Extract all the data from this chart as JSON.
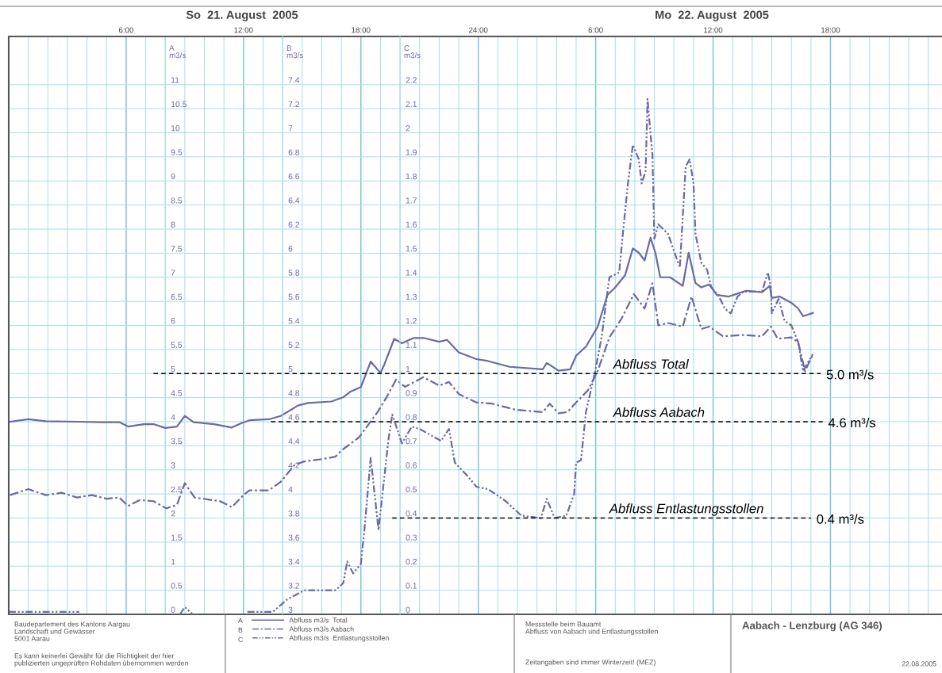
{
  "chart_data": {
    "type": "line",
    "title": "Aabach - Lenzburg (AG 346)",
    "ylabel": "A\nm3/s",
    "y2label": "B\nm3/s",
    "y3label": "C\nm3/s",
    "xlim": [
      "2005-08-21T00:00",
      "2005-08-22T23:42"
    ],
    "xticks": [
      {
        "value": "2005-08-21T06:00",
        "label": "6:00"
      },
      {
        "value": "2005-08-21T12:00",
        "label": "12:00"
      },
      {
        "value": "2005-08-21T18:00",
        "label": "18:00"
      },
      {
        "value": "2005-08-22T00:00",
        "label": "24:00"
      },
      {
        "value": "2005-08-22T06:00",
        "label": "6:00"
      },
      {
        "value": "2005-08-22T12:00",
        "label": "12:00"
      },
      {
        "value": "2005-08-22T18:00",
        "label": "18:00"
      }
    ],
    "ylim": [
      0,
      12
    ],
    "yticks": [
      0,
      0.5,
      1,
      1.5,
      2,
      2.5,
      3,
      3.5,
      4,
      4.5,
      5,
      5.5,
      6,
      6.5,
      7,
      7.5,
      8,
      8.5,
      9,
      9.5,
      10,
      10.5,
      11
    ],
    "y2lim": [
      3,
      7.8
    ],
    "y2ticks": [
      3,
      3.2,
      3.4,
      3.6,
      3.8,
      4,
      4.2,
      4.4,
      4.6,
      4.8,
      5,
      5.2,
      5.4,
      5.6,
      5.8,
      6,
      6.2,
      6.4,
      6.6,
      6.8,
      7,
      7.2,
      7.4
    ],
    "y3lim": [
      0,
      2.4
    ],
    "y3ticks": [
      0,
      0.1,
      0.2,
      0.3,
      0.4,
      0.5,
      0.6,
      0.7,
      0.8,
      0.9,
      1,
      1.1,
      1.2,
      1.3,
      1.4,
      1.5,
      1.6,
      1.7,
      1.8,
      1.9,
      2,
      2.1,
      2.2
    ],
    "grid": true,
    "legend": "bottom",
    "series": [
      {
        "name": "Abfluss m3/s  Total",
        "color": "#6a6aa6",
        "line_style": "solid",
        "axis": "y",
        "x": [
          "2005-08-21T00:04",
          "2005-08-21T01:00",
          "2005-08-21T01:54",
          "2005-08-21T03:30",
          "2005-08-21T04:42",
          "2005-08-21T05:39",
          "2005-08-21T06:06",
          "2005-08-21T06:54",
          "2005-08-21T07:24",
          "2005-08-21T08:00",
          "2005-08-21T08:36",
          "2005-08-21T09:00",
          "2005-08-21T09:27",
          "2005-08-21T10:30",
          "2005-08-21T11:24",
          "2005-08-21T11:54",
          "2005-08-21T12:18",
          "2005-08-21T13:18",
          "2005-08-21T13:54",
          "2005-08-21T14:48",
          "2005-08-21T15:18",
          "2005-08-21T16:30",
          "2005-08-21T17:06",
          "2005-08-21T17:27",
          "2005-08-21T18:00",
          "2005-08-21T18:30",
          "2005-08-21T19:00",
          "2005-08-21T19:12",
          "2005-08-21T19:42",
          "2005-08-21T20:06",
          "2005-08-21T20:42",
          "2005-08-21T21:12",
          "2005-08-21T22:00",
          "2005-08-21T22:24",
          "2005-08-21T23:00",
          "2005-08-21T23:54",
          "2005-08-22T00:30",
          "2005-08-22T01:36",
          "2005-08-22T03:18",
          "2005-08-22T03:30",
          "2005-08-22T04:06",
          "2005-08-22T04:42",
          "2005-08-22T05:00",
          "2005-08-22T05:30",
          "2005-08-22T06:06",
          "2005-08-22T06:36",
          "2005-08-22T07:00",
          "2005-08-22T07:30",
          "2005-08-22T07:54",
          "2005-08-22T08:12",
          "2005-08-22T08:30",
          "2005-08-22T08:48",
          "2005-08-22T09:03",
          "2005-08-22T09:18",
          "2005-08-22T09:48",
          "2005-08-22T10:27",
          "2005-08-22T10:45",
          "2005-08-22T11:06",
          "2005-08-22T11:24",
          "2005-08-22T11:48",
          "2005-08-22T12:12",
          "2005-08-22T12:48",
          "2005-08-22T13:15",
          "2005-08-22T13:42",
          "2005-08-22T14:30",
          "2005-08-22T14:54",
          "2005-08-22T15:00",
          "2005-08-22T15:24",
          "2005-08-22T16:00",
          "2005-08-22T16:21",
          "2005-08-22T16:36",
          "2005-08-22T17:06"
        ],
        "values": [
          4.0,
          4.05,
          4.01,
          4.0,
          3.99,
          3.99,
          3.9,
          3.95,
          3.95,
          3.87,
          3.9,
          4.12,
          3.99,
          3.95,
          3.88,
          3.97,
          4.03,
          4.05,
          4.12,
          4.34,
          4.39,
          4.42,
          4.51,
          4.62,
          4.72,
          5.25,
          5.01,
          5.19,
          5.72,
          5.63,
          5.74,
          5.74,
          5.66,
          5.7,
          5.44,
          5.3,
          5.26,
          5.14,
          5.09,
          5.22,
          5.06,
          5.09,
          5.37,
          5.56,
          5.97,
          6.63,
          6.79,
          7.04,
          7.6,
          7.51,
          7.35,
          7.82,
          7.51,
          7.0,
          7.0,
          6.82,
          7.51,
          6.88,
          6.79,
          6.85,
          6.63,
          6.6,
          6.66,
          6.72,
          6.69,
          6.82,
          6.57,
          6.6,
          6.47,
          6.35,
          6.19,
          6.26
        ]
      },
      {
        "name": "Abfluss m3/s Aabach",
        "color": "#6a6aa6",
        "line_style": "dashdot",
        "axis": "y2",
        "x": [
          "2005-08-21T00:04",
          "2005-08-21T01:00",
          "2005-08-21T01:54",
          "2005-08-21T02:42",
          "2005-08-21T03:30",
          "2005-08-21T04:15",
          "2005-08-21T05:00",
          "2005-08-21T05:39",
          "2005-08-21T06:06",
          "2005-08-21T06:42",
          "2005-08-21T07:24",
          "2005-08-21T08:03",
          "2005-08-21T08:36",
          "2005-08-21T09:00",
          "2005-08-21T09:30",
          "2005-08-21T10:48",
          "2005-08-21T11:24",
          "2005-08-21T12:00",
          "2005-08-21T12:18",
          "2005-08-21T13:18",
          "2005-08-21T13:54",
          "2005-08-21T14:36",
          "2005-08-21T15:06",
          "2005-08-21T16:03",
          "2005-08-21T16:42",
          "2005-08-21T17:00",
          "2005-08-21T17:54",
          "2005-08-21T18:24",
          "2005-08-21T18:51",
          "2005-08-21T19:18",
          "2005-08-21T19:48",
          "2005-08-21T20:15",
          "2005-08-21T21:12",
          "2005-08-21T22:00",
          "2005-08-21T22:30",
          "2005-08-21T23:00",
          "2005-08-21T23:54",
          "2005-08-22T00:42",
          "2005-08-22T01:54",
          "2005-08-22T03:18",
          "2005-08-22T03:39",
          "2005-08-22T04:06",
          "2005-08-22T04:33",
          "2005-08-22T05:00",
          "2005-08-22T05:36",
          "2005-08-22T06:06",
          "2005-08-22T06:42",
          "2005-08-22T07:18",
          "2005-08-22T07:57",
          "2005-08-22T08:30",
          "2005-08-22T08:54",
          "2005-08-22T09:12",
          "2005-08-22T09:42",
          "2005-08-22T10:27",
          "2005-08-22T10:54",
          "2005-08-22T11:24",
          "2005-08-22T11:48",
          "2005-08-22T12:30",
          "2005-08-22T13:33",
          "2005-08-22T14:30",
          "2005-08-22T14:57",
          "2005-08-22T15:18",
          "2005-08-22T16:00",
          "2005-08-22T16:21",
          "2005-08-22T16:42",
          "2005-08-22T17:06"
        ],
        "values": [
          3.99,
          4.04,
          3.99,
          4.01,
          3.97,
          3.99,
          3.96,
          3.97,
          3.9,
          3.95,
          3.94,
          3.88,
          3.91,
          4.09,
          3.97,
          3.94,
          3.89,
          3.99,
          4.03,
          4.03,
          4.1,
          4.24,
          4.27,
          4.29,
          4.31,
          4.36,
          4.47,
          4.58,
          4.68,
          4.8,
          4.95,
          4.89,
          4.97,
          4.9,
          4.93,
          4.83,
          4.76,
          4.75,
          4.7,
          4.68,
          4.75,
          4.67,
          4.68,
          4.76,
          4.86,
          5.02,
          5.3,
          5.45,
          5.66,
          5.54,
          5.75,
          5.4,
          5.42,
          5.39,
          5.64,
          5.37,
          5.39,
          5.31,
          5.32,
          5.31,
          5.39,
          5.29,
          5.3,
          5.26,
          5.02,
          5.16
        ]
      },
      {
        "name": "Abfluss m3/s  Entlastungsstollen",
        "color": "#6a6aa6",
        "line_style": "dashdotdot",
        "axis": "y3",
        "x": [
          "2005-08-21T00:00",
          "2005-08-21T03:36",
          "2005-08-21T06:00",
          "2005-08-21T08:45",
          "2005-08-21T09:00",
          "2005-08-21T09:24",
          "2005-08-21T11:00",
          "2005-08-21T12:12",
          "2005-08-21T13:30",
          "2005-08-21T14:12",
          "2005-08-21T15:06",
          "2005-08-21T16:42",
          "2005-08-21T17:06",
          "2005-08-21T17:18",
          "2005-08-21T17:36",
          "2005-08-21T18:00",
          "2005-08-21T18:12",
          "2005-08-21T18:30",
          "2005-08-21T18:54",
          "2005-08-21T19:24",
          "2005-08-21T19:36",
          "2005-08-21T20:06",
          "2005-08-21T20:36",
          "2005-08-21T21:00",
          "2005-08-21T22:06",
          "2005-08-21T22:30",
          "2005-08-21T22:48",
          "2005-08-21T23:30",
          "2005-08-21T23:54",
          "2005-08-22T00:30",
          "2005-08-22T01:24",
          "2005-08-22T02:12",
          "2005-08-22T03:12",
          "2005-08-22T03:30",
          "2005-08-22T03:54",
          "2005-08-22T04:30",
          "2005-08-22T04:54",
          "2005-08-22T05:00",
          "2005-08-22T05:15",
          "2005-08-22T05:30",
          "2005-08-22T05:57",
          "2005-08-22T06:18",
          "2005-08-22T06:42",
          "2005-08-22T07:12",
          "2005-08-22T07:24",
          "2005-08-22T07:39",
          "2005-08-22T07:54",
          "2005-08-22T08:12",
          "2005-08-22T08:21",
          "2005-08-22T08:33",
          "2005-08-22T08:39",
          "2005-08-22T08:42",
          "2005-08-22T08:54",
          "2005-08-22T09:00",
          "2005-08-22T09:12",
          "2005-08-22T09:42",
          "2005-08-22T10:18",
          "2005-08-22T10:36",
          "2005-08-22T10:48",
          "2005-08-22T11:00",
          "2005-08-22T11:06",
          "2005-08-22T11:24",
          "2005-08-22T11:42",
          "2005-08-22T11:54",
          "2005-08-22T12:18",
          "2005-08-22T12:36",
          "2005-08-22T12:54",
          "2005-08-22T13:15",
          "2005-08-22T13:33",
          "2005-08-22T14:30",
          "2005-08-22T14:48",
          "2005-08-22T14:57",
          "2005-08-22T15:00",
          "2005-08-22T15:21",
          "2005-08-22T15:39",
          "2005-08-22T16:00",
          "2005-08-22T16:21",
          "2005-08-22T16:36",
          "2005-08-22T16:48",
          "2005-08-22T17:06"
        ],
        "values": [
          0.01,
          0.01,
          null,
          0.0,
          0.03,
          0.0,
          null,
          0.01,
          0.01,
          0.06,
          0.1,
          0.1,
          0.13,
          0.22,
          0.17,
          0.21,
          0.37,
          0.65,
          0.35,
          0.72,
          0.83,
          0.71,
          0.78,
          0.77,
          0.72,
          0.77,
          0.63,
          0.57,
          0.53,
          0.52,
          0.47,
          0.41,
          0.4,
          0.48,
          0.4,
          0.41,
          0.5,
          0.63,
          0.64,
          0.84,
          1.0,
          1.15,
          1.4,
          1.42,
          1.59,
          1.79,
          1.95,
          1.89,
          1.79,
          1.84,
          2.14,
          2.09,
          1.91,
          1.56,
          1.62,
          1.58,
          1.44,
          1.86,
          1.89,
          1.79,
          1.58,
          1.46,
          1.43,
          1.36,
          1.32,
          1.27,
          1.25,
          1.32,
          1.34,
          1.34,
          1.42,
          1.36,
          1.25,
          1.31,
          1.22,
          1.2,
          1.13,
          1.01,
          1.04,
          1.08
        ]
      },
      {
        "name": "5.0 m³/s",
        "color": "#000000",
        "line_style": "dashed",
        "axis": "y",
        "x": [
          "2005-08-21T07:24",
          "2005-08-22T17:30"
        ],
        "values": [
          5.0,
          5.0
        ]
      },
      {
        "name": "4.6 m³/s",
        "color": "#000000",
        "line_style": "dashed",
        "axis": "y2",
        "x": [
          "2005-08-21T13:24",
          "2005-08-22T17:36"
        ],
        "values": [
          4.6,
          4.6
        ]
      },
      {
        "name": "0.4 m³/s",
        "color": "#000000",
        "line_style": "dashed",
        "axis": "y3",
        "x": [
          "2005-08-21T19:36",
          "2005-08-22T17:00"
        ],
        "values": [
          0.4,
          0.4
        ]
      }
    ],
    "annotations": [
      {
        "text": "Abfluss Total",
        "x": "2005-08-22T06:54",
        "y": 5.0
      },
      {
        "text": "Abfluss Aabach",
        "x": "2005-08-22T06:54",
        "y": 4.0
      },
      {
        "text": "Abfluss Entlastungsstollen",
        "x": "2005-08-22T06:42",
        "y": 2.0
      },
      "So  21. August  2005",
      "Mo  22. August  2005",
      "Baudepartement des Kantons Aargau\nLandschaft und Gewässer\n5001 Aarau",
      "Es kann keinerlei Gewähr für die Richtigkeit der hier\npublizierten ungeprüften Rohdaten übernommen werden",
      "Messstelle beim Bauamt\nAbfluss von Aabach und Entlastungsstollen",
      "Zeitangaben sind immer Winterzeit! (MEZ)",
      "22.08.2005",
      "A",
      "B",
      "C"
    ]
  }
}
